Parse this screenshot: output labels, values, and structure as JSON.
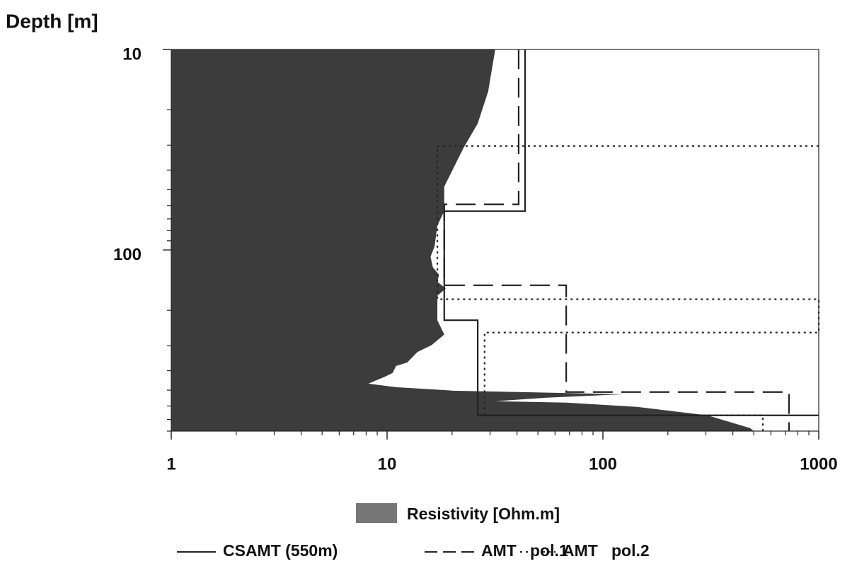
{
  "chart_data": {
    "type": "line",
    "y_label": "Depth [m]",
    "xlog": true,
    "ylog": true,
    "y_inverted": true,
    "xlim": [
      1,
      1000
    ],
    "xticks": [
      1,
      10,
      100,
      1000
    ],
    "ylim": [
      10,
      800
    ],
    "yticks": [
      10,
      100
    ],
    "series": [
      {
        "name": "Resistivity [Ohm.m]",
        "color": "#3c3c3c",
        "style": "area",
        "values": [
          31.7,
          29.4,
          26.3,
          22.6,
          20.2,
          18.4,
          18.4,
          17.1,
          16.6,
          15.9,
          16.3,
          17.4,
          17.1,
          18.7,
          17.1,
          17.1,
          18.4,
          16.1,
          13.8,
          12.4,
          11.0,
          10.6,
          9.8,
          8.2,
          11.0,
          20.2,
          124,
          53.8,
          31.7,
          67.6,
          144,
          305,
          481,
          500
        ],
        "depth": [
          10,
          16.2,
          23.4,
          31.0,
          39.5,
          48.3,
          64.1,
          75.4,
          96,
          108,
          122,
          133,
          144,
          156,
          169,
          224,
          264,
          298,
          323,
          364,
          379,
          411,
          428,
          464,
          483,
          503,
          524,
          546,
          568,
          577,
          606,
          668,
          773,
          800
        ]
      },
      {
        "name": "CSAMT (550m)",
        "color": "#222222",
        "style": "solid",
        "values": [
          43.6,
          43.6,
          18.4,
          18.4,
          26.3,
          26.3,
          1000
        ],
        "depth": [
          10,
          64,
          64,
          224,
          224,
          668,
          668
        ]
      },
      {
        "name": "AMT   pol.1",
        "color": "#222222",
        "style": "dashed",
        "values": [
          40.7,
          40.7,
          18.4,
          18.4,
          67.6,
          67.6,
          728,
          728
        ],
        "depth": [
          10,
          59.2,
          59.2,
          150,
          150,
          511,
          511,
          800
        ]
      },
      {
        "name": "AMT   pol.2",
        "color": "#222222",
        "style": "dotted",
        "values": [
          1000,
          17.1,
          17.1,
          1000,
          1000,
          28.3,
          28.3,
          551,
          551
        ],
        "depth": [
          30.3,
          30.3,
          176,
          176,
          258,
          258,
          668,
          668,
          800
        ]
      }
    ]
  }
}
